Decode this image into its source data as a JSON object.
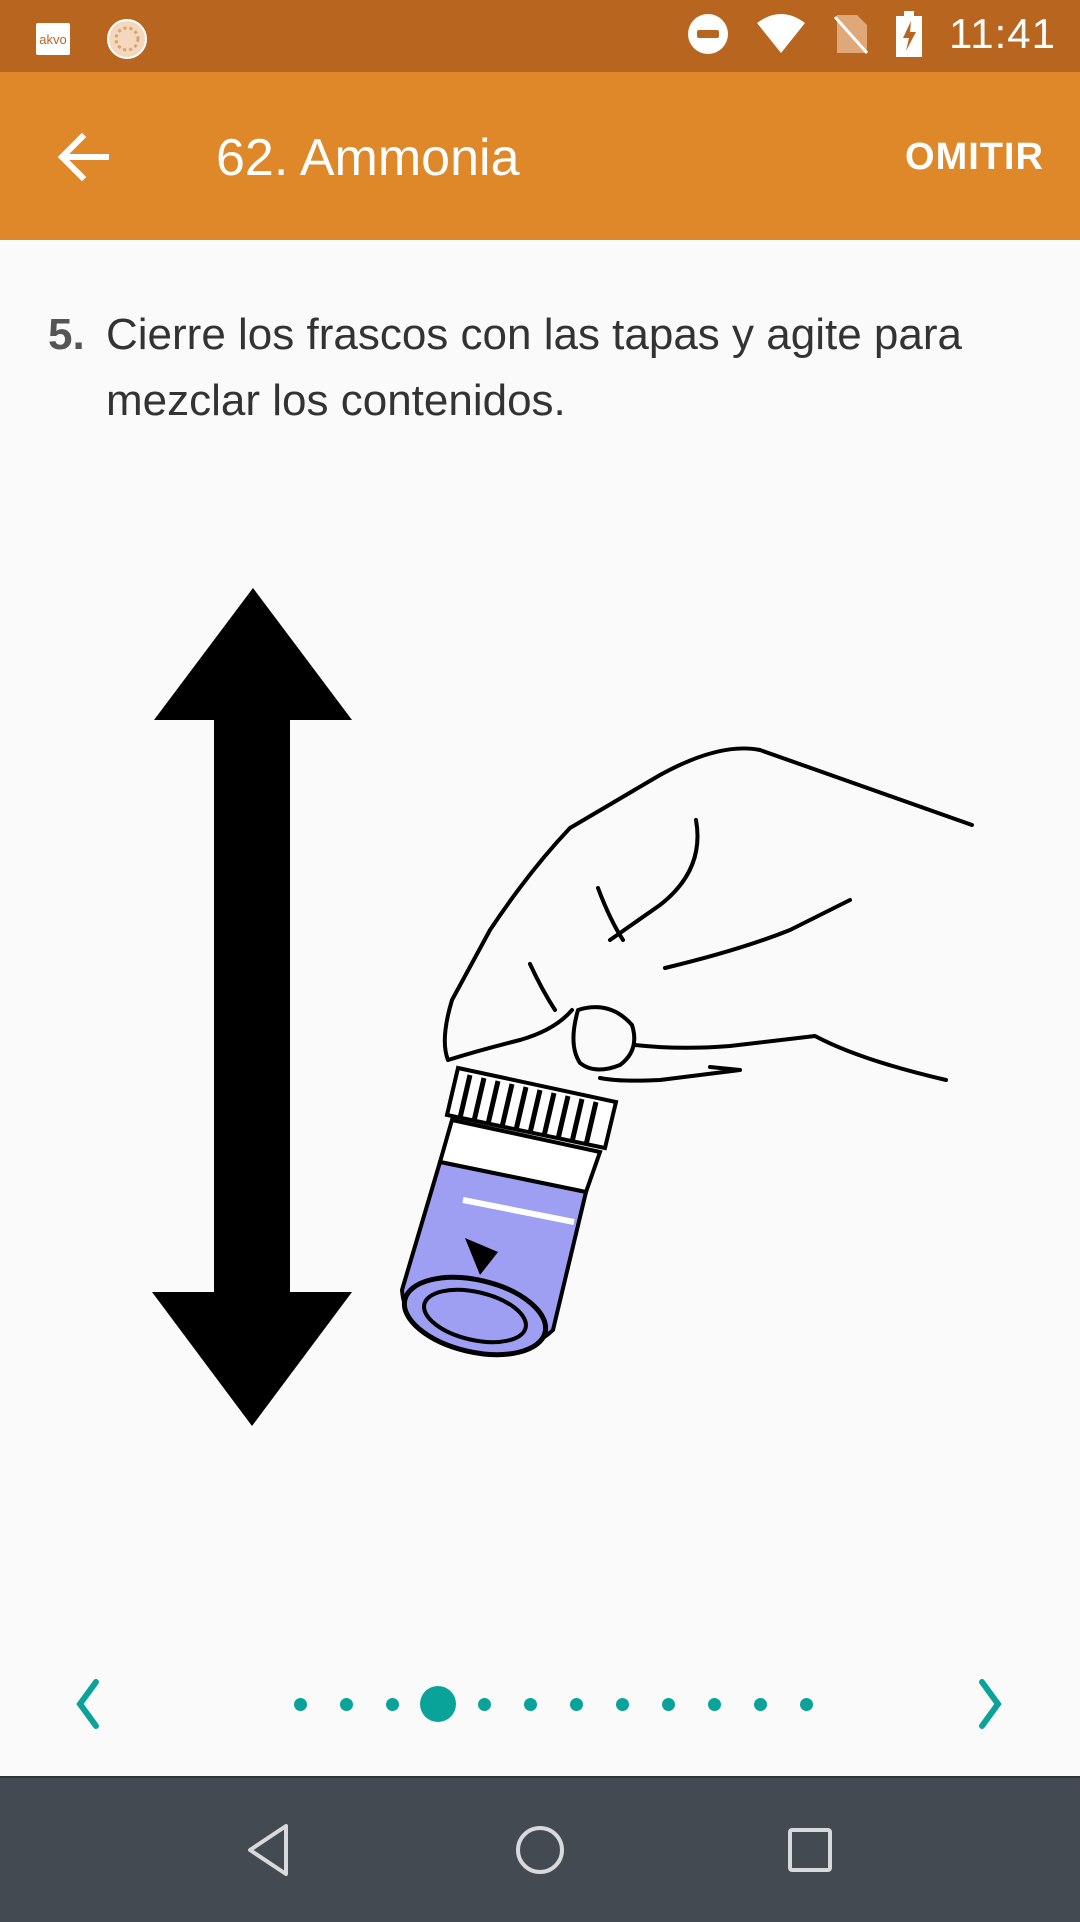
{
  "status_bar": {
    "app_badge": "akvo",
    "time": "11:41",
    "icons": [
      "dnd-icon",
      "wifi-icon",
      "no-sim-icon",
      "battery-charging-icon"
    ]
  },
  "app_bar": {
    "title": "62. Ammonia",
    "skip_label": "OMITIR",
    "back_icon": "arrow-back-icon"
  },
  "instruction": {
    "step_number": "5.",
    "text": "Cierre los frascos con las tapas y agite para mezclar los contenidos."
  },
  "illustration": {
    "description_icon": "shake-vial-icon"
  },
  "pager": {
    "total_pages": 12,
    "current_page": 4,
    "prev_icon": "chevron-left-icon",
    "next_icon": "chevron-right-icon",
    "accent_color": "#0aa39a"
  },
  "nav_bar": {
    "buttons": [
      "nav-back-icon",
      "nav-home-icon",
      "nav-recents-icon"
    ]
  },
  "colors": {
    "status_bar": "#b8651f",
    "app_bar": "#de8829",
    "vial_liquid": "#9e9ef2"
  }
}
